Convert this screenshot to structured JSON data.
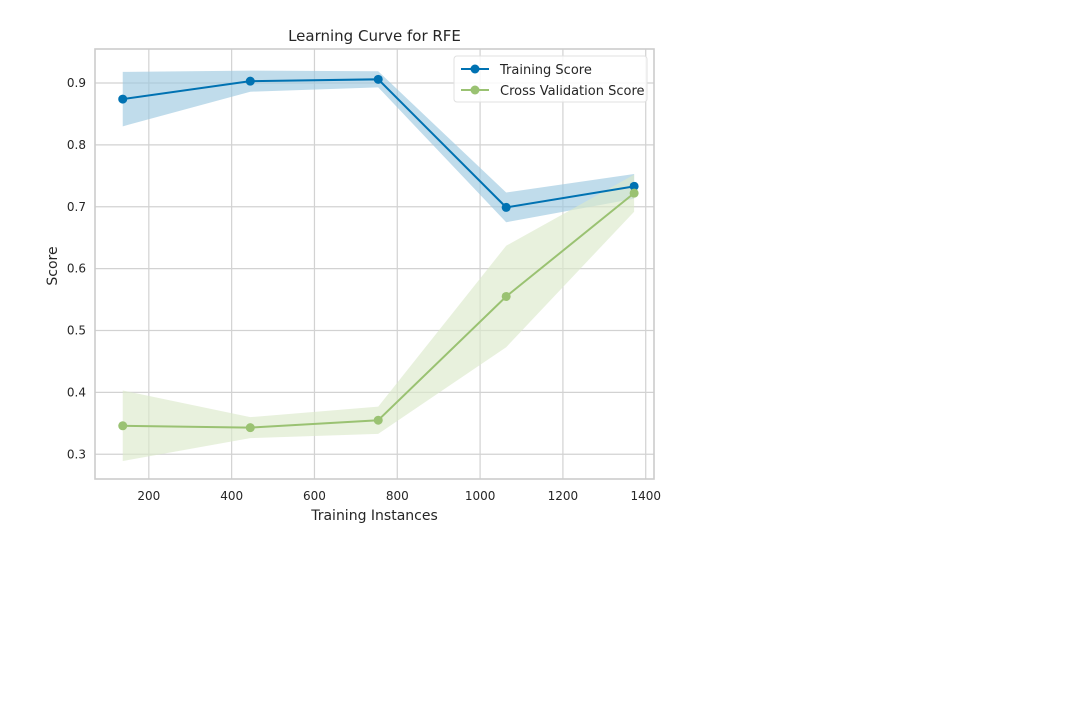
{
  "chart_data": {
    "type": "line",
    "title": "Learning Curve for RFE",
    "xlabel": "Training Instances",
    "ylabel": "Score",
    "xlim": [
      70,
      1420
    ],
    "ylim": [
      0.26,
      0.955
    ],
    "xticks": [
      200,
      400,
      600,
      800,
      1000,
      1200,
      1400
    ],
    "yticks": [
      0.3,
      0.4,
      0.5,
      0.6,
      0.7,
      0.8,
      0.9
    ],
    "grid": true,
    "legend_position": "top-right",
    "x": [
      137,
      445,
      754,
      1063,
      1372
    ],
    "series": [
      {
        "name": "Training Score",
        "color": "#0072b2",
        "band_color": "#9ecae1",
        "values": [
          0.874,
          0.903,
          0.906,
          0.699,
          0.733
        ],
        "upper": [
          0.918,
          0.92,
          0.919,
          0.723,
          0.753
        ],
        "lower": [
          0.83,
          0.886,
          0.893,
          0.675,
          0.713
        ]
      },
      {
        "name": "Cross Validation Score",
        "color": "#9ac272",
        "band_color": "#dbe9cb",
        "values": [
          0.346,
          0.343,
          0.355,
          0.555,
          0.722
        ],
        "upper": [
          0.403,
          0.36,
          0.377,
          0.637,
          0.752
        ],
        "lower": [
          0.289,
          0.326,
          0.333,
          0.473,
          0.692
        ]
      }
    ]
  }
}
